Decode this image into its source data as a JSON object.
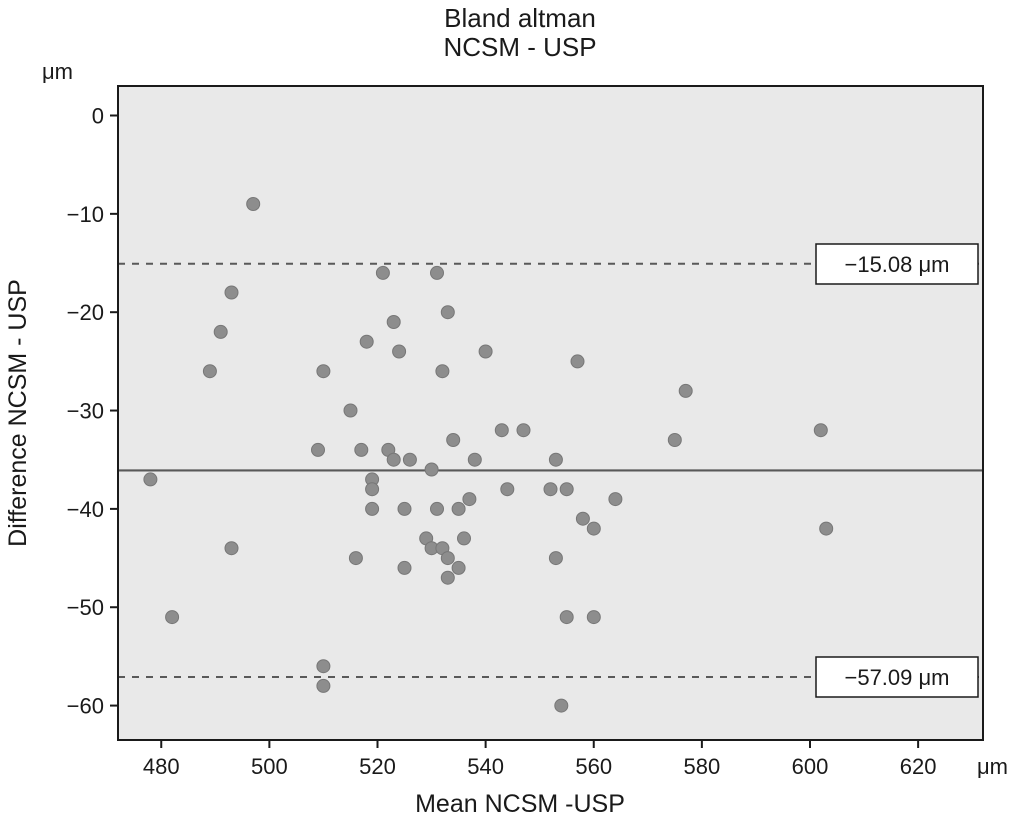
{
  "chart_data": {
    "type": "scatter",
    "title": "Bland altman",
    "subtitle": "NCSM - USP",
    "xlabel": "Mean NCSM -USP",
    "ylabel": "Difference NCSM - USP",
    "x_unit": "μm",
    "y_unit": "μm",
    "xlim": [
      472,
      632
    ],
    "ylim": [
      -63.5,
      3
    ],
    "x_ticks": [
      480,
      500,
      520,
      540,
      560,
      580,
      600,
      620
    ],
    "y_ticks": [
      0,
      -10,
      -20,
      -30,
      -40,
      -50,
      -60
    ],
    "grid": false,
    "mean_line": {
      "value": -36.09
    },
    "upper_limit": {
      "value": -15.08,
      "label": "−15.08 μm"
    },
    "lower_limit": {
      "value": -57.09,
      "label": "−57.09 μm"
    },
    "points": [
      [
        478,
        -37
      ],
      [
        482,
        -51
      ],
      [
        489,
        -26
      ],
      [
        491,
        -22
      ],
      [
        493,
        -18
      ],
      [
        493,
        -44
      ],
      [
        497,
        -9
      ],
      [
        509,
        -34
      ],
      [
        510,
        -26
      ],
      [
        510,
        -56
      ],
      [
        510,
        -58
      ],
      [
        515,
        -30
      ],
      [
        516,
        -45
      ],
      [
        517,
        -34
      ],
      [
        518,
        -23
      ],
      [
        519,
        -37
      ],
      [
        519,
        -38
      ],
      [
        519,
        -40
      ],
      [
        521,
        -16
      ],
      [
        522,
        -34
      ],
      [
        523,
        -21
      ],
      [
        523,
        -35
      ],
      [
        524,
        -24
      ],
      [
        525,
        -40
      ],
      [
        525,
        -46
      ],
      [
        526,
        -35
      ],
      [
        529,
        -43
      ],
      [
        530,
        -36
      ],
      [
        530,
        -44
      ],
      [
        531,
        -16
      ],
      [
        531,
        -40
      ],
      [
        532,
        -26
      ],
      [
        532,
        -44
      ],
      [
        533,
        -20
      ],
      [
        533,
        -45
      ],
      [
        533,
        -47
      ],
      [
        534,
        -33
      ],
      [
        535,
        -40
      ],
      [
        535,
        -46
      ],
      [
        536,
        -43
      ],
      [
        537,
        -39
      ],
      [
        538,
        -35
      ],
      [
        540,
        -24
      ],
      [
        543,
        -32
      ],
      [
        544,
        -38
      ],
      [
        547,
        -32
      ],
      [
        552,
        -38
      ],
      [
        553,
        -35
      ],
      [
        553,
        -45
      ],
      [
        554,
        -60
      ],
      [
        555,
        -51
      ],
      [
        555,
        -38
      ],
      [
        557,
        -25
      ],
      [
        558,
        -41
      ],
      [
        560,
        -42
      ],
      [
        560,
        -51
      ],
      [
        564,
        -39
      ],
      [
        575,
        -33
      ],
      [
        577,
        -28
      ],
      [
        602,
        -32
      ],
      [
        603,
        -42
      ]
    ],
    "colors": {
      "point": "#8d8d8d",
      "point_edge": "#777777",
      "line": "#595959",
      "plot_bg": "#e9e9e9",
      "border": "#1a1a1a"
    }
  }
}
